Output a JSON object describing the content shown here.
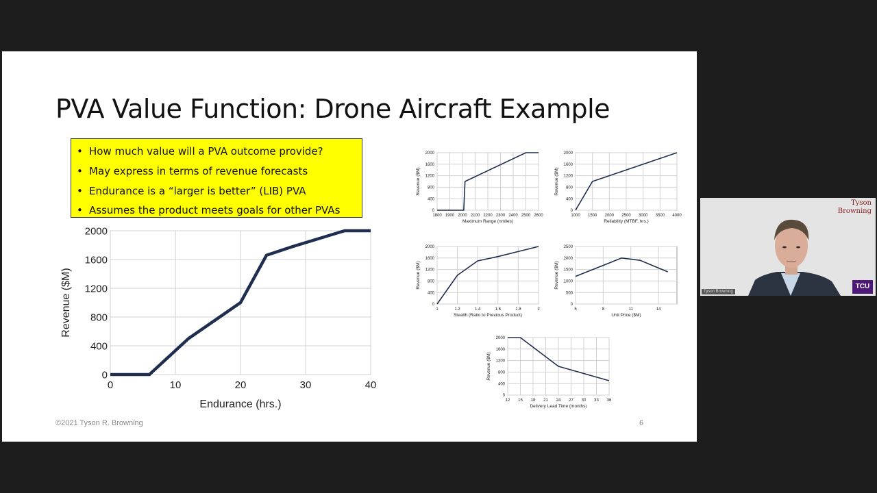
{
  "slide": {
    "title": "PVA Value Function: Drone Aircraft Example",
    "bullets": [
      "How much value will a PVA outcome provide?",
      "May express in terms of revenue forecasts",
      "Endurance is a “larger is better” (LIB) PVA",
      "Assumes the product meets goals for other PVAs"
    ],
    "footer": "©2021 Tyson R. Browning",
    "page_number": "6"
  },
  "video": {
    "brand_line1": "Tyson",
    "brand_line2": "Browning",
    "logo_text": "TCU",
    "name_tag": "Tyson Browning"
  },
  "colors": {
    "line": "#1f2d4e",
    "highlight": "#ffff00",
    "brand": "#8a1c1c",
    "tcu_purple": "#4d1979"
  },
  "chart_data": [
    {
      "type": "line",
      "xlabel": "Endurance  (hrs.)",
      "ylabel": "Revenue  ($M)",
      "xlim": [
        0,
        40
      ],
      "ylim": [
        0,
        2000
      ],
      "xticks": [
        0,
        10,
        20,
        30,
        40
      ],
      "yticks": [
        0,
        400,
        800,
        1200,
        1600,
        2000
      ],
      "x": [
        0,
        6,
        12,
        20,
        24,
        28,
        36,
        40
      ],
      "y": [
        0,
        0,
        500,
        1000,
        1660,
        1780,
        2000,
        2000
      ]
    },
    {
      "type": "line",
      "xlabel": "Maximum Range (nmiles)",
      "ylabel": "Revenue ($M)",
      "xlim": [
        1800,
        2600
      ],
      "ylim": [
        0,
        2000
      ],
      "xticks": [
        1800,
        1900,
        2000,
        2100,
        2200,
        2300,
        2400,
        2500,
        2600
      ],
      "yticks": [
        0,
        400,
        800,
        1200,
        1600,
        2000
      ],
      "x": [
        1800,
        2000,
        2010,
        2020,
        2500,
        2600
      ],
      "y": [
        0,
        0,
        0,
        1000,
        2000,
        2000
      ]
    },
    {
      "type": "line",
      "xlabel": "Reliability (MTBF, hrs.)",
      "ylabel": "Revenue ($M)",
      "xlim": [
        1000,
        4000
      ],
      "ylim": [
        0,
        2000
      ],
      "xticks": [
        1000,
        1500,
        2000,
        2500,
        3000,
        3500,
        4000
      ],
      "yticks": [
        0,
        400,
        800,
        1200,
        1600,
        2000
      ],
      "x": [
        1000,
        1500,
        4000
      ],
      "y": [
        0,
        1000,
        2000
      ]
    },
    {
      "type": "line",
      "xlabel": "Stealth (Ratio to Previous Product)",
      "ylabel": "Revenue ($M)",
      "xlim": [
        1,
        2
      ],
      "ylim": [
        0,
        2000
      ],
      "xticks": [
        1,
        1.2,
        1.4,
        1.6,
        1.8,
        2
      ],
      "yticks": [
        0,
        400,
        800,
        1200,
        1600,
        2000
      ],
      "x": [
        1,
        1.2,
        1.4,
        1.6,
        2
      ],
      "y": [
        0,
        1000,
        1500,
        1650,
        2000
      ]
    },
    {
      "type": "line",
      "xlabel": "Unit Price ($M)",
      "ylabel": "Revenue ($M)",
      "xlim": [
        5,
        16
      ],
      "ylim": [
        0,
        2500
      ],
      "xticks": [
        5,
        8,
        11,
        14
      ],
      "yticks": [
        0,
        500,
        1000,
        1500,
        2000,
        2500
      ],
      "x": [
        5,
        10,
        12,
        15
      ],
      "y": [
        1200,
        2000,
        1900,
        1400
      ]
    },
    {
      "type": "line",
      "xlabel": "Delivery Lead Time (months)",
      "ylabel": "Revenue ($M)",
      "xlim": [
        12,
        36
      ],
      "ylim": [
        0,
        2000
      ],
      "xticks": [
        12,
        15,
        18,
        21,
        24,
        27,
        30,
        33,
        36
      ],
      "yticks": [
        0,
        400,
        800,
        1200,
        1600,
        2000
      ],
      "x": [
        12,
        15,
        24,
        36
      ],
      "y": [
        2000,
        2000,
        1000,
        500
      ]
    }
  ]
}
